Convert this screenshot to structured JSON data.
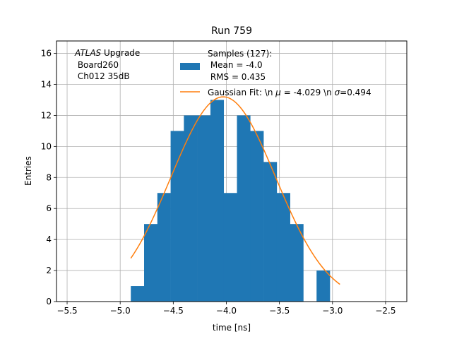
{
  "chart_data": {
    "type": "bar",
    "title": "Run 759",
    "xlabel": "time [ns]",
    "ylabel": "Entries",
    "xlim": [
      -5.6,
      -2.3
    ],
    "ylim": [
      0,
      16.8
    ],
    "x_ticks": [
      "−5.5",
      "−5.0",
      "−4.5",
      "−4.0",
      "−3.5",
      "−3.0",
      "−2.5"
    ],
    "x_tick_values": [
      -5.5,
      -5.0,
      -4.5,
      -4.0,
      -3.5,
      -3.0,
      -2.5
    ],
    "y_ticks": [
      "0",
      "2",
      "4",
      "6",
      "8",
      "10",
      "12",
      "14",
      "16"
    ],
    "y_tick_values": [
      0,
      2,
      4,
      6,
      8,
      10,
      12,
      14,
      16
    ],
    "grid": true,
    "annotation": {
      "line1_italic": "ATLAS",
      "line1_rest": " Upgrade",
      "line2": " Board260",
      "line3": " Ch012 35dB"
    },
    "histogram": {
      "name_lines": [
        "Samples (127):",
        " Mean = -4.0",
        " RMS = 0.435"
      ],
      "color": "#1f77b4",
      "bin_edges": [
        -4.9,
        -4.775,
        -4.65,
        -4.525,
        -4.4,
        -4.275,
        -4.15,
        -4.025,
        -3.9,
        -3.775,
        -3.65,
        -3.525,
        -3.4,
        -3.275,
        -3.15,
        -3.025,
        -2.9
      ],
      "counts": [
        1,
        5,
        7,
        11,
        12,
        12,
        13,
        7,
        12,
        11,
        9,
        7,
        5,
        0,
        2,
        0
      ]
    },
    "fit": {
      "name_prefix": "Gaussian Fit: \\n ",
      "mu_symbol": "μ",
      "mu_text": " = -4.029 \\n ",
      "sigma_symbol": "σ",
      "sigma_text": "=0.494",
      "color": "#ff7f0e",
      "mu": -4.029,
      "sigma": 0.494,
      "amplitude": 13.2,
      "x_range": [
        -4.9,
        -2.93
      ]
    },
    "legend_position": "top-right"
  }
}
